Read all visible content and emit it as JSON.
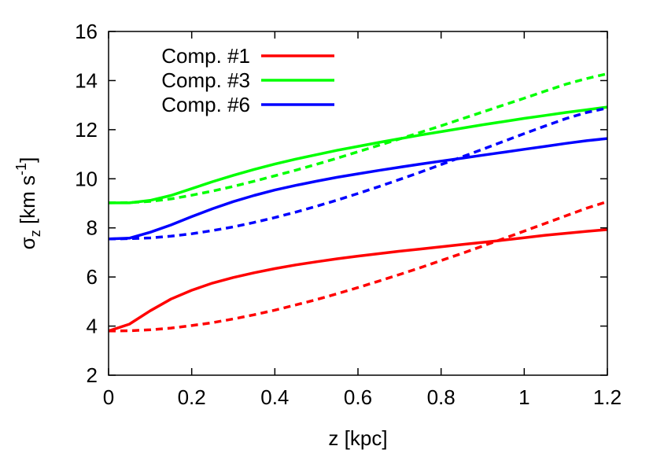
{
  "chart_data": {
    "type": "line",
    "title": "",
    "xlabel": "z [kpc]",
    "ylabel": {
      "sigma": "σ",
      "subscript": "z",
      "units_open": " [km s",
      "exponent": "-1",
      "units_close": "]"
    },
    "xlim": [
      0,
      1.2
    ],
    "ylim": [
      2,
      16
    ],
    "xticks": [
      0,
      0.2,
      0.4,
      0.6,
      0.8,
      1,
      1.2
    ],
    "xtick_labels": [
      "0",
      "0.2",
      "0.4",
      "0.6",
      "0.8",
      "1",
      "1.2"
    ],
    "yticks": [
      2,
      4,
      6,
      8,
      10,
      12,
      14,
      16
    ],
    "ytick_labels": [
      "2",
      "4",
      "6",
      "8",
      "10",
      "12",
      "14",
      "16"
    ],
    "grid": false,
    "legend_position": "top-left",
    "x": [
      0,
      0.05,
      0.1,
      0.15,
      0.2,
      0.25,
      0.3,
      0.35,
      0.4,
      0.45,
      0.5,
      0.55,
      0.6,
      0.65,
      0.7,
      0.75,
      0.8,
      0.85,
      0.9,
      0.95,
      1.0,
      1.05,
      1.1,
      1.15,
      1.2
    ],
    "series": [
      {
        "name": "Comp. #1",
        "color": "#ff0000",
        "style": "solid",
        "legend": true,
        "values": [
          3.8,
          4.08,
          4.62,
          5.1,
          5.46,
          5.75,
          5.98,
          6.17,
          6.34,
          6.49,
          6.62,
          6.74,
          6.85,
          6.95,
          7.05,
          7.14,
          7.23,
          7.32,
          7.41,
          7.5,
          7.6,
          7.7,
          7.78,
          7.86,
          7.93
        ]
      },
      {
        "name": "Comp. #3",
        "color": "#00ff00",
        "style": "solid",
        "legend": true,
        "values": [
          9.02,
          9.02,
          9.12,
          9.32,
          9.6,
          9.88,
          10.14,
          10.38,
          10.6,
          10.8,
          10.98,
          11.16,
          11.32,
          11.48,
          11.63,
          11.78,
          11.92,
          12.06,
          12.2,
          12.33,
          12.46,
          12.58,
          12.7,
          12.81,
          12.92
        ]
      },
      {
        "name": "Comp. #6",
        "color": "#0000ff",
        "style": "solid",
        "legend": true,
        "values": [
          7.55,
          7.58,
          7.82,
          8.12,
          8.46,
          8.78,
          9.07,
          9.32,
          9.54,
          9.73,
          9.9,
          10.06,
          10.2,
          10.34,
          10.47,
          10.6,
          10.72,
          10.84,
          10.96,
          11.08,
          11.2,
          11.32,
          11.44,
          11.55,
          11.64
        ]
      },
      {
        "color": "#ff0000",
        "style": "dashed",
        "legend": false,
        "values": [
          3.8,
          3.81,
          3.85,
          3.92,
          4.02,
          4.14,
          4.29,
          4.46,
          4.65,
          4.86,
          5.08,
          5.32,
          5.57,
          5.83,
          6.1,
          6.38,
          6.67,
          6.96,
          7.26,
          7.56,
          7.87,
          8.18,
          8.49,
          8.8,
          9.07
        ]
      },
      {
        "color": "#00ff00",
        "style": "dashed",
        "legend": false,
        "values": [
          9.02,
          9.03,
          9.08,
          9.18,
          9.33,
          9.5,
          9.69,
          9.9,
          10.12,
          10.35,
          10.59,
          10.84,
          11.1,
          11.36,
          11.62,
          11.89,
          12.16,
          12.44,
          12.72,
          13.0,
          13.28,
          13.57,
          13.85,
          14.08,
          14.28
        ]
      },
      {
        "color": "#0000ff",
        "style": "dashed",
        "legend": false,
        "values": [
          7.55,
          7.56,
          7.59,
          7.66,
          7.76,
          7.89,
          8.04,
          8.22,
          8.42,
          8.64,
          8.88,
          9.13,
          9.4,
          9.68,
          9.97,
          10.27,
          10.58,
          10.89,
          11.2,
          11.52,
          11.84,
          12.15,
          12.45,
          12.7,
          12.88
        ]
      }
    ]
  }
}
